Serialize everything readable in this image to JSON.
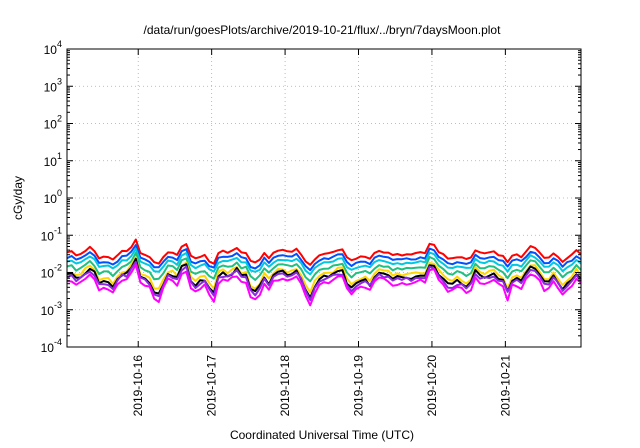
{
  "chart_data": {
    "type": "line",
    "title": "/data/run/goesPlots/archive/2019-10-21/flux/../bryn/7daysMoon.plot",
    "xlabel": "Coordinated Universal Time (UTC)",
    "ylabel": "cGy/day",
    "yscale": "log",
    "ylim": [
      0.0001,
      10000
    ],
    "xlim": [
      0,
      7
    ],
    "grid": true,
    "y_ticks": [
      {
        "value": 0.0001,
        "base": "10",
        "exp": "-4"
      },
      {
        "value": 0.001,
        "base": "10",
        "exp": "-3"
      },
      {
        "value": 0.01,
        "base": "10",
        "exp": "-2"
      },
      {
        "value": 0.1,
        "base": "10",
        "exp": "-1"
      },
      {
        "value": 1,
        "base": "10",
        "exp": "0"
      },
      {
        "value": 10,
        "base": "10",
        "exp": "1"
      },
      {
        "value": 100,
        "base": "10",
        "exp": "2"
      },
      {
        "value": 1000,
        "base": "10",
        "exp": "3"
      },
      {
        "value": 10000,
        "base": "10",
        "exp": "4"
      }
    ],
    "x_ticks": [
      {
        "value": 0.97,
        "label": "2019-10-16"
      },
      {
        "value": 1.97,
        "label": "2019-10-17"
      },
      {
        "value": 2.97,
        "label": "2019-10-18"
      },
      {
        "value": 3.97,
        "label": "2019-10-19"
      },
      {
        "value": 4.97,
        "label": "2019-10-20"
      },
      {
        "value": 5.97,
        "label": "2019-10-21"
      }
    ],
    "x_step_days": 0.0625,
    "series": [
      {
        "color": "#ff0000",
        "base": 0.03,
        "amp": 0.1,
        "seed": 11
      },
      {
        "color": "#0050ff",
        "base": 0.022,
        "amp": 0.1,
        "seed": 23
      },
      {
        "color": "#00c8e0",
        "base": 0.017,
        "amp": 0.1,
        "seed": 37
      },
      {
        "color": "#20c080",
        "base": 0.012,
        "amp": 0.13,
        "seed": 41
      },
      {
        "color": "#ffd700",
        "base": 0.0085,
        "amp": 0.2,
        "seed": 53
      },
      {
        "color": "#000000",
        "base": 0.007,
        "amp": 0.22,
        "seed": 67
      },
      {
        "color": "#8a2be2",
        "base": 0.0062,
        "amp": 0.22,
        "seed": 79
      },
      {
        "color": "#ff00ff",
        "base": 0.0048,
        "amp": 0.24,
        "seed": 83
      }
    ]
  }
}
